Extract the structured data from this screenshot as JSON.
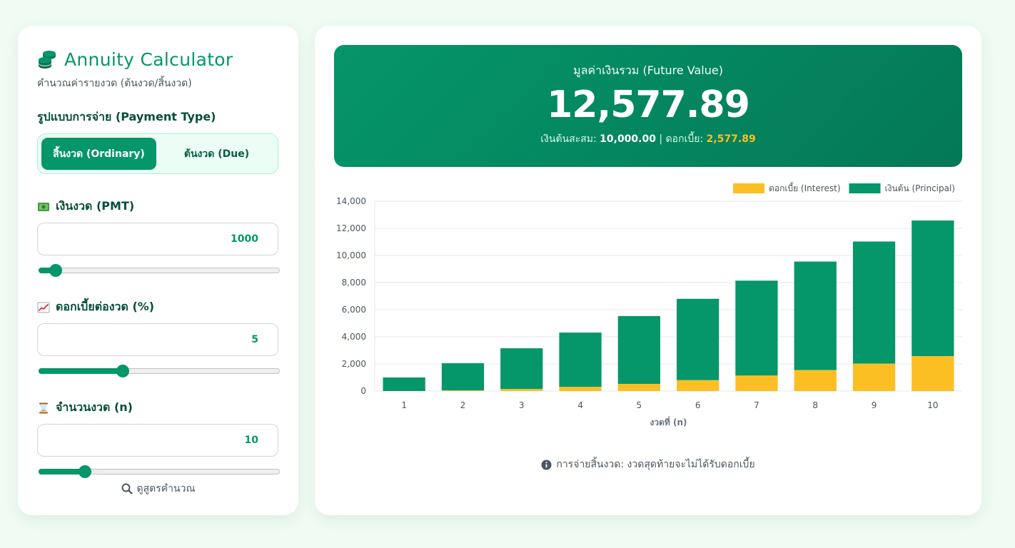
{
  "app": {
    "title": "Annuity Calculator",
    "subtitle": "คำนวณค่ารายงวด (ต้นงวด/สิ้นงวด)",
    "icon": "coins-icon"
  },
  "payment_type": {
    "label": "รูปแบบการจ่าย (Payment Type)",
    "options": [
      "สิ้นงวด (Ordinary)",
      "ต้นงวด (Due)"
    ],
    "selected": "สิ้นงวด (Ordinary)"
  },
  "pmt": {
    "label": "เงินงวด (PMT)",
    "icon": "money-icon",
    "value": "1000",
    "slider_fraction": 0.04
  },
  "rate": {
    "label": "ดอกเบี้ยต่องวด (%)",
    "icon": "chart-increasing-icon",
    "value": "5",
    "slider_fraction": 0.34
  },
  "periods": {
    "label": "จำนวนงวด (n)",
    "icon": "hourglass-icon",
    "value": "10",
    "slider_fraction": 0.17
  },
  "formula_link": "ดูสูตรคำนวณ",
  "result": {
    "label": "มูลค่าเงินรวม (Future Value)",
    "value": "12,577.89",
    "principal_label": "เงินต้นสะสม:",
    "principal_value": "10,000.00",
    "separator": "|",
    "interest_label": "ดอกเบี้ย:",
    "interest_value": "2,577.89"
  },
  "note": "การจ่ายสิ้นงวด: งวดสุดท้ายจะไม่ได้รับดอกเบี้ย",
  "colors": {
    "accent": "#059669",
    "interest": "#fbbf24",
    "principal": "#059669"
  },
  "chart_data": {
    "type": "bar",
    "stacked": true,
    "categories": [
      "1",
      "2",
      "3",
      "4",
      "5",
      "6",
      "7",
      "8",
      "9",
      "10"
    ],
    "series": [
      {
        "name": "ดอกเบี้ย (Interest)",
        "color": "#fbbf24",
        "values": [
          0,
          50,
          152.5,
          310.13,
          525.63,
          801.91,
          1142.01,
          1549.11,
          2026.56,
          2577.89
        ]
      },
      {
        "name": "เงินต้น (Principal)",
        "color": "#059669",
        "values": [
          1000,
          2000,
          3000,
          4000,
          5000,
          6000,
          7000,
          8000,
          9000,
          10000
        ]
      }
    ],
    "xlabel": "งวดที่ (n)",
    "ylabel": "",
    "ylim": [
      0,
      14000
    ],
    "yticks": [
      0,
      2000,
      4000,
      6000,
      8000,
      10000,
      12000,
      14000
    ],
    "ytick_labels": [
      "0",
      "2,000",
      "4,000",
      "6,000",
      "8,000",
      "10,000",
      "12,000",
      "14,000"
    ],
    "grid": true,
    "legend": "top-right"
  }
}
